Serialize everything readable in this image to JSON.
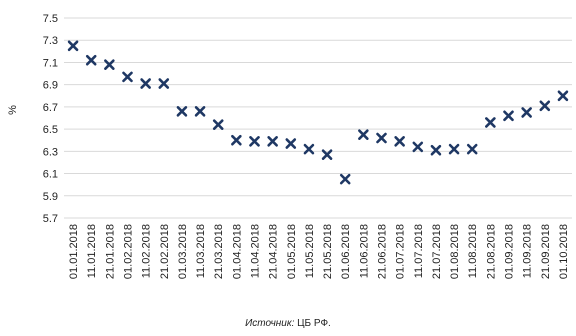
{
  "chart_data": {
    "type": "scatter",
    "title": "",
    "xlabel": "",
    "ylabel": "%",
    "ylim": [
      5.7,
      7.5
    ],
    "yticks": [
      "5.7",
      "5.9",
      "6.1",
      "6.3",
      "6.5",
      "6.7",
      "6.9",
      "7.1",
      "7.3",
      "7.5"
    ],
    "grid": true,
    "marker": "x",
    "marker_color": "#1f3864",
    "categories": [
      "01.01.2018",
      "11.01.2018",
      "21.01.2018",
      "01.02.2018",
      "11.02.2018",
      "21.02.2018",
      "01.03.2018",
      "11.03.2018",
      "21.03.2018",
      "01.04.2018",
      "11.04.2018",
      "21.04.2018",
      "01.05.2018",
      "11.05.2018",
      "21.05.2018",
      "01.06.2018",
      "11.06.2018",
      "21.06.2018",
      "01.07.2018",
      "11.07.2018",
      "21.07.2018",
      "01.08.2018",
      "11.08.2018",
      "21.08.2018",
      "01.09.2018",
      "11.09.2018",
      "21.09.2018",
      "01.10.2018"
    ],
    "values": [
      7.25,
      7.12,
      7.08,
      6.97,
      6.91,
      6.91,
      6.66,
      6.66,
      6.54,
      6.4,
      6.39,
      6.39,
      6.37,
      6.32,
      6.27,
      6.05,
      6.45,
      6.42,
      6.39,
      6.34,
      6.31,
      6.32,
      6.32,
      6.56,
      6.62,
      6.65,
      6.71,
      6.8
    ]
  },
  "footer": {
    "source_label": "Источник:",
    "source_text": " ЦБ РФ."
  }
}
